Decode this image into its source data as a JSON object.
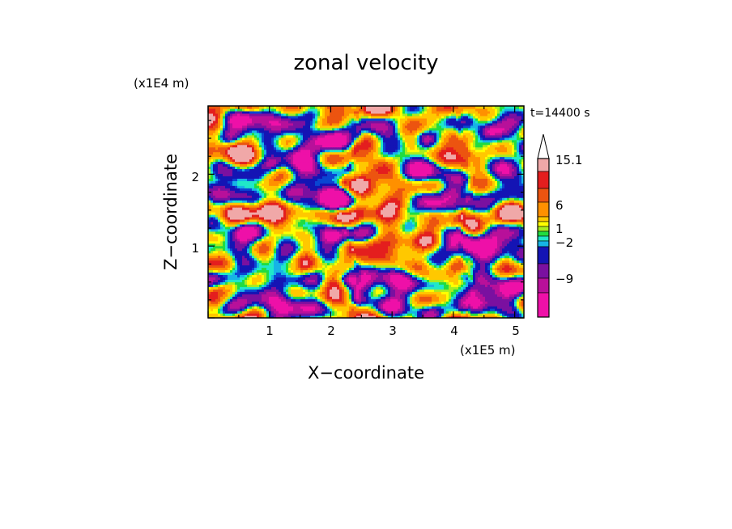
{
  "chart_data": {
    "type": "heatmap",
    "title": "zonal velocity",
    "time_label": "t=14400 s",
    "xlabel": "X−coordinate",
    "ylabel": "Z−coordinate",
    "x_unit": "(x1E5 m)",
    "y_unit": "(x1E4 m)",
    "xlim": [
      0,
      5.15
    ],
    "ylim": [
      0,
      2.95
    ],
    "x_ticks": [
      "1",
      "2",
      "3",
      "4",
      "5"
    ],
    "y_ticks": [
      "1",
      "2"
    ],
    "grid": false,
    "colorbar": {
      "extend": "max",
      "labels": [
        "15.1",
        "6",
        "1",
        "−2",
        "−9"
      ],
      "levels": [
        -15.1,
        -12,
        -9,
        -6,
        -3,
        -2,
        -1,
        0,
        1,
        2,
        3,
        6,
        9,
        12,
        15.1
      ],
      "colors": [
        "#ee10a8",
        "#b8109a",
        "#7a10a0",
        "#1414b4",
        "#0a46d2",
        "#16b4e6",
        "#20e8c8",
        "#20dc40",
        "#a8ec20",
        "#ffff00",
        "#ffc800",
        "#ff9000",
        "#ec5410",
        "#e41e1e",
        "#f0a8a8"
      ]
    },
    "field_description": "turbulent zonal velocity field, broad positive (yellow-orange) and negative (blue) patches with narrow streaks near x=2.3 and x=4.2"
  }
}
